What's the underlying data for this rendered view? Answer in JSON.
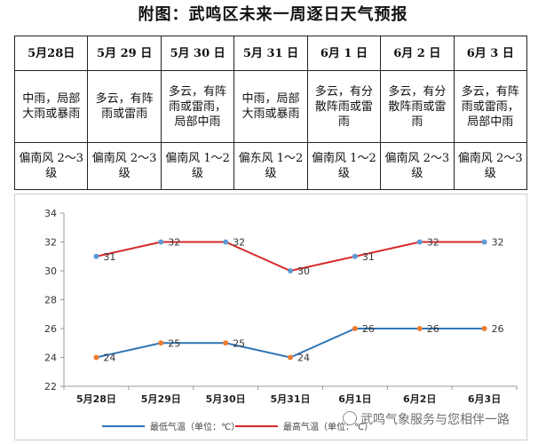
{
  "title": "附图：武鸣区未来一周逐日天气预报",
  "forecast": [
    {
      "date": "5月28日",
      "weather": "中雨，局部大雨或暴雨",
      "wind": "偏南风 2～3 级"
    },
    {
      "date": "5月 29 日",
      "weather": "多云，有阵雨或雷雨",
      "wind": "偏南风 2～3 级"
    },
    {
      "date": "5月 30 日",
      "weather": "多云，有阵雨或雷雨，局部中雨",
      "wind": "偏南风 1～2 级"
    },
    {
      "date": "5月 31 日",
      "weather": "中雨，局部大雨或暴雨",
      "wind": "偏东风 1～2 级"
    },
    {
      "date": "6月 1 日",
      "weather": "多云，有分散阵雨或雷雨",
      "wind": "偏南风 1～2 级"
    },
    {
      "date": "6月 2 日",
      "weather": "多云，有分散阵雨或雷雨",
      "wind": "偏南风 2～3 级"
    },
    {
      "date": "6月 3 日",
      "weather": "多云，有阵雨或雷雨，局部中雨",
      "wind": "偏南风 2～3 级"
    }
  ],
  "chart_data": {
    "type": "line",
    "categories": [
      "5月28日",
      "5月29日",
      "5月30日",
      "5月31日",
      "6月1日",
      "6月2日",
      "6月3日"
    ],
    "ylim": [
      22,
      34
    ],
    "yticks": [
      22,
      24,
      26,
      28,
      30,
      32,
      34
    ],
    "grid": false,
    "legend_position": "bottom",
    "series": [
      {
        "name": "最低气温（单位：℃）",
        "color": "#2e75b6",
        "values": [
          24,
          25,
          25,
          24,
          26,
          26,
          26
        ]
      },
      {
        "name": "最高气温（单位：℃）",
        "color": "#d62728",
        "values": [
          31,
          32,
          32,
          30,
          31,
          32,
          32
        ]
      }
    ],
    "marker_color": "#5b9bd5",
    "marker_color_low": "#ed7d31"
  },
  "watermark": "武鸣气象服务与您相伴一路"
}
